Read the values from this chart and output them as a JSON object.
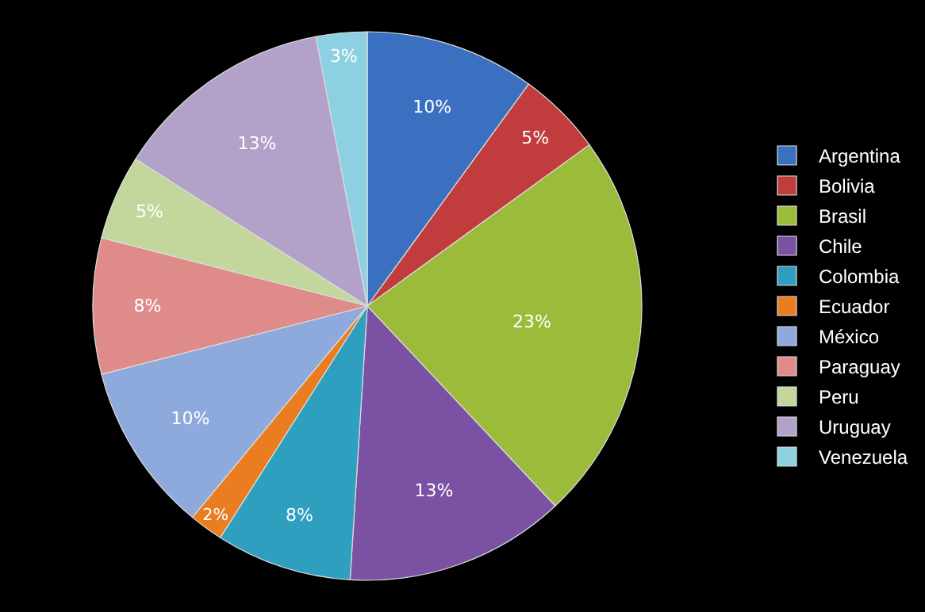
{
  "chart_data": {
    "type": "pie",
    "categories": [
      "Argentina",
      "Bolivia",
      "Brasil",
      "Chile",
      "Colombia",
      "Ecuador",
      "México",
      "Paraguay",
      "Peru",
      "Uruguay",
      "Venezuela"
    ],
    "values": [
      10,
      5,
      23,
      13,
      8,
      2,
      10,
      8,
      5,
      13,
      3
    ],
    "value_labels": [
      "10%",
      "5%",
      "23%",
      "13%",
      "8%",
      "2%",
      "10%",
      "8%",
      "5%",
      "13%",
      "3%"
    ],
    "colors": [
      "#3b70c0",
      "#c13c3d",
      "#9cbb3b",
      "#7b52a3",
      "#2f9fbf",
      "#e97d20",
      "#8ea9dc",
      "#df8b8a",
      "#c3d69c",
      "#b2a1c8",
      "#8dd0e1"
    ],
    "legend": "right"
  }
}
